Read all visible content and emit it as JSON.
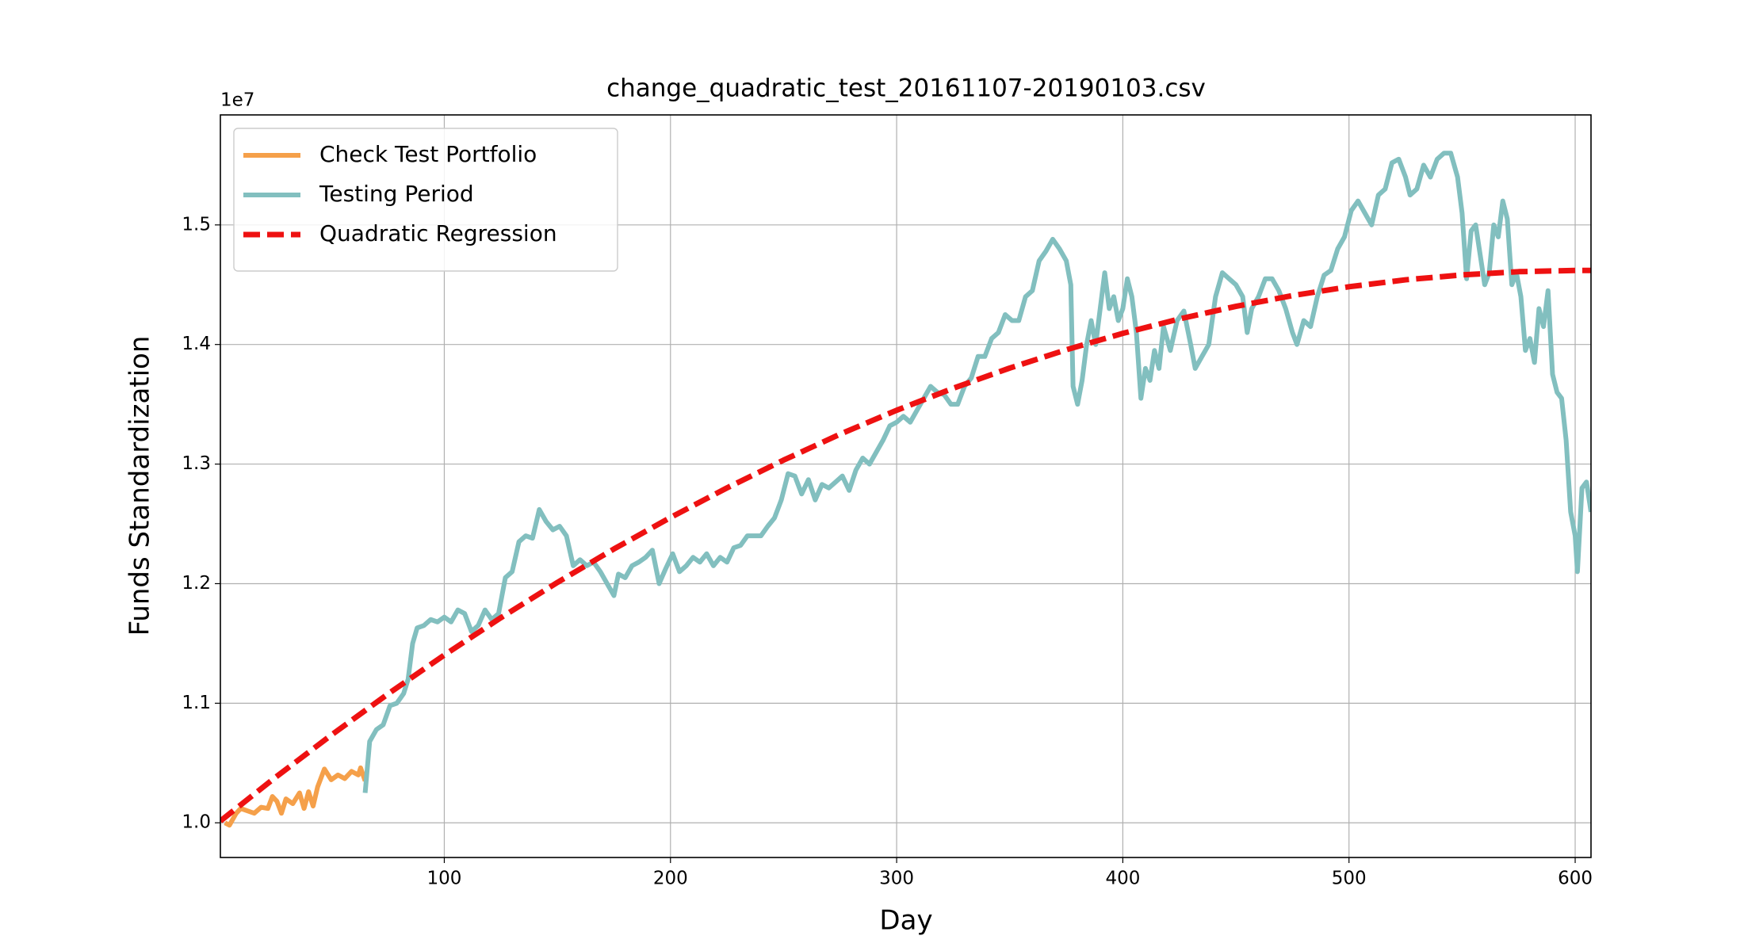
{
  "chart_data": {
    "type": "line",
    "title": "change_quadratic_test_20161107-20190103.csv",
    "xlabel": "Day",
    "ylabel": "Funds Standardization",
    "y_offset_label": "1e7",
    "xlim": [
      1,
      607
    ],
    "ylim": [
      0.971,
      1.592
    ],
    "xticks": [
      100,
      200,
      300,
      400,
      500,
      600
    ],
    "yticks": [
      {
        "value": 1.0,
        "label": "1.0"
      },
      1.1,
      1.2,
      1.3,
      1.4,
      1.5
    ],
    "grid": true,
    "legend": "upper left",
    "series": [
      {
        "name": "Check Test Portfolio",
        "color": "#f5a04a",
        "line_style": "solid",
        "x": [
          3,
          5,
          8,
          10,
          13,
          16,
          19,
          22,
          24,
          26,
          28,
          30,
          33,
          36,
          38,
          40,
          42,
          44,
          47,
          50,
          53,
          56,
          59,
          62,
          63,
          65
        ],
        "values": [
          1.0,
          0.998,
          1.008,
          1.012,
          1.01,
          1.008,
          1.013,
          1.012,
          1.022,
          1.018,
          1.008,
          1.02,
          1.016,
          1.025,
          1.012,
          1.026,
          1.014,
          1.03,
          1.045,
          1.036,
          1.04,
          1.037,
          1.043,
          1.04,
          1.046,
          1.035
        ]
      },
      {
        "name": "Testing Period",
        "color": "#82bfbf",
        "line_style": "solid",
        "x": [
          65,
          67,
          70,
          73,
          76,
          79,
          82,
          84,
          86,
          88,
          91,
          94,
          97,
          100,
          103,
          106,
          109,
          112,
          115,
          118,
          121,
          124,
          127,
          130,
          133,
          136,
          139,
          142,
          145,
          148,
          151,
          154,
          157,
          160,
          163,
          166,
          169,
          172,
          175,
          177,
          180,
          183,
          186,
          189,
          192,
          195,
          198,
          201,
          204,
          207,
          210,
          213,
          216,
          219,
          222,
          225,
          228,
          231,
          234,
          237,
          240,
          243,
          246,
          249,
          252,
          255,
          258,
          261,
          264,
          267,
          270,
          273,
          276,
          279,
          282,
          285,
          288,
          291,
          294,
          297,
          300,
          303,
          306,
          309,
          312,
          315,
          318,
          321,
          324,
          327,
          330,
          333,
          336,
          339,
          342,
          345,
          348,
          351,
          354,
          357,
          360,
          363,
          366,
          369,
          372,
          375,
          377,
          378,
          380,
          382,
          384,
          386,
          388,
          390,
          392,
          394,
          396,
          398,
          400,
          402,
          404,
          406,
          408,
          410,
          412,
          414,
          416,
          418,
          421,
          424,
          427,
          430,
          432,
          435,
          438,
          441,
          444,
          447,
          450,
          453,
          455,
          457,
          460,
          463,
          466,
          469,
          472,
          475,
          477,
          480,
          483,
          486,
          489,
          492,
          495,
          498,
          501,
          504,
          507,
          510,
          513,
          516,
          519,
          522,
          525,
          527,
          530,
          533,
          536,
          539,
          542,
          545,
          548,
          550,
          552,
          554,
          556,
          558,
          560,
          562,
          564,
          566,
          568,
          570,
          572,
          574,
          576,
          578,
          580,
          582,
          584,
          586,
          588,
          590,
          592,
          594,
          596,
          598,
          600,
          601,
          603,
          605,
          607
        ],
        "values": [
          1.025,
          1.068,
          1.078,
          1.082,
          1.098,
          1.1,
          1.108,
          1.12,
          1.15,
          1.163,
          1.165,
          1.17,
          1.168,
          1.172,
          1.168,
          1.178,
          1.175,
          1.16,
          1.165,
          1.178,
          1.17,
          1.175,
          1.205,
          1.21,
          1.235,
          1.24,
          1.238,
          1.262,
          1.252,
          1.245,
          1.248,
          1.24,
          1.215,
          1.22,
          1.215,
          1.218,
          1.21,
          1.2,
          1.19,
          1.208,
          1.205,
          1.215,
          1.218,
          1.222,
          1.228,
          1.2,
          1.213,
          1.225,
          1.21,
          1.215,
          1.222,
          1.218,
          1.225,
          1.215,
          1.222,
          1.218,
          1.23,
          1.232,
          1.24,
          1.24,
          1.24,
          1.248,
          1.255,
          1.27,
          1.292,
          1.29,
          1.275,
          1.287,
          1.27,
          1.283,
          1.28,
          1.285,
          1.29,
          1.278,
          1.295,
          1.305,
          1.3,
          1.31,
          1.32,
          1.332,
          1.335,
          1.34,
          1.335,
          1.345,
          1.355,
          1.365,
          1.36,
          1.358,
          1.35,
          1.35,
          1.365,
          1.372,
          1.39,
          1.39,
          1.405,
          1.41,
          1.425,
          1.42,
          1.42,
          1.44,
          1.445,
          1.47,
          1.478,
          1.488,
          1.48,
          1.47,
          1.45,
          1.365,
          1.35,
          1.37,
          1.4,
          1.42,
          1.4,
          1.43,
          1.46,
          1.43,
          1.44,
          1.42,
          1.43,
          1.455,
          1.44,
          1.41,
          1.355,
          1.38,
          1.37,
          1.395,
          1.38,
          1.415,
          1.395,
          1.42,
          1.428,
          1.4,
          1.38,
          1.39,
          1.4,
          1.44,
          1.46,
          1.455,
          1.45,
          1.44,
          1.41,
          1.43,
          1.44,
          1.455,
          1.455,
          1.445,
          1.43,
          1.41,
          1.4,
          1.42,
          1.415,
          1.44,
          1.458,
          1.462,
          1.48,
          1.49,
          1.512,
          1.52,
          1.51,
          1.5,
          1.525,
          1.53,
          1.552,
          1.555,
          1.54,
          1.525,
          1.53,
          1.55,
          1.54,
          1.555,
          1.56,
          1.56,
          1.54,
          1.51,
          1.455,
          1.495,
          1.5,
          1.475,
          1.45,
          1.46,
          1.5,
          1.49,
          1.52,
          1.505,
          1.45,
          1.46,
          1.44,
          1.395,
          1.405,
          1.385,
          1.43,
          1.415,
          1.445,
          1.375,
          1.36,
          1.355,
          1.32,
          1.26,
          1.24,
          1.21,
          1.28,
          1.285,
          1.26
        ]
      },
      {
        "name": "Quadratic Regression",
        "color": "#ee1111",
        "line_style": "dashed",
        "x": [
          1,
          25,
          50,
          75,
          100,
          125,
          150,
          175,
          200,
          225,
          250,
          275,
          300,
          325,
          350,
          375,
          400,
          425,
          450,
          475,
          500,
          525,
          550,
          575,
          600,
          607
        ],
        "values": [
          1.0015,
          1.0375,
          1.0733,
          1.1076,
          1.1403,
          1.1715,
          1.201,
          1.229,
          1.2553,
          1.2801,
          1.3033,
          1.325,
          1.345,
          1.3634,
          1.3803,
          1.3956,
          1.4093,
          1.4214,
          1.4319,
          1.4409,
          1.4483,
          1.4541,
          1.4582,
          1.4609,
          1.4619,
          1.4619
        ]
      }
    ]
  }
}
